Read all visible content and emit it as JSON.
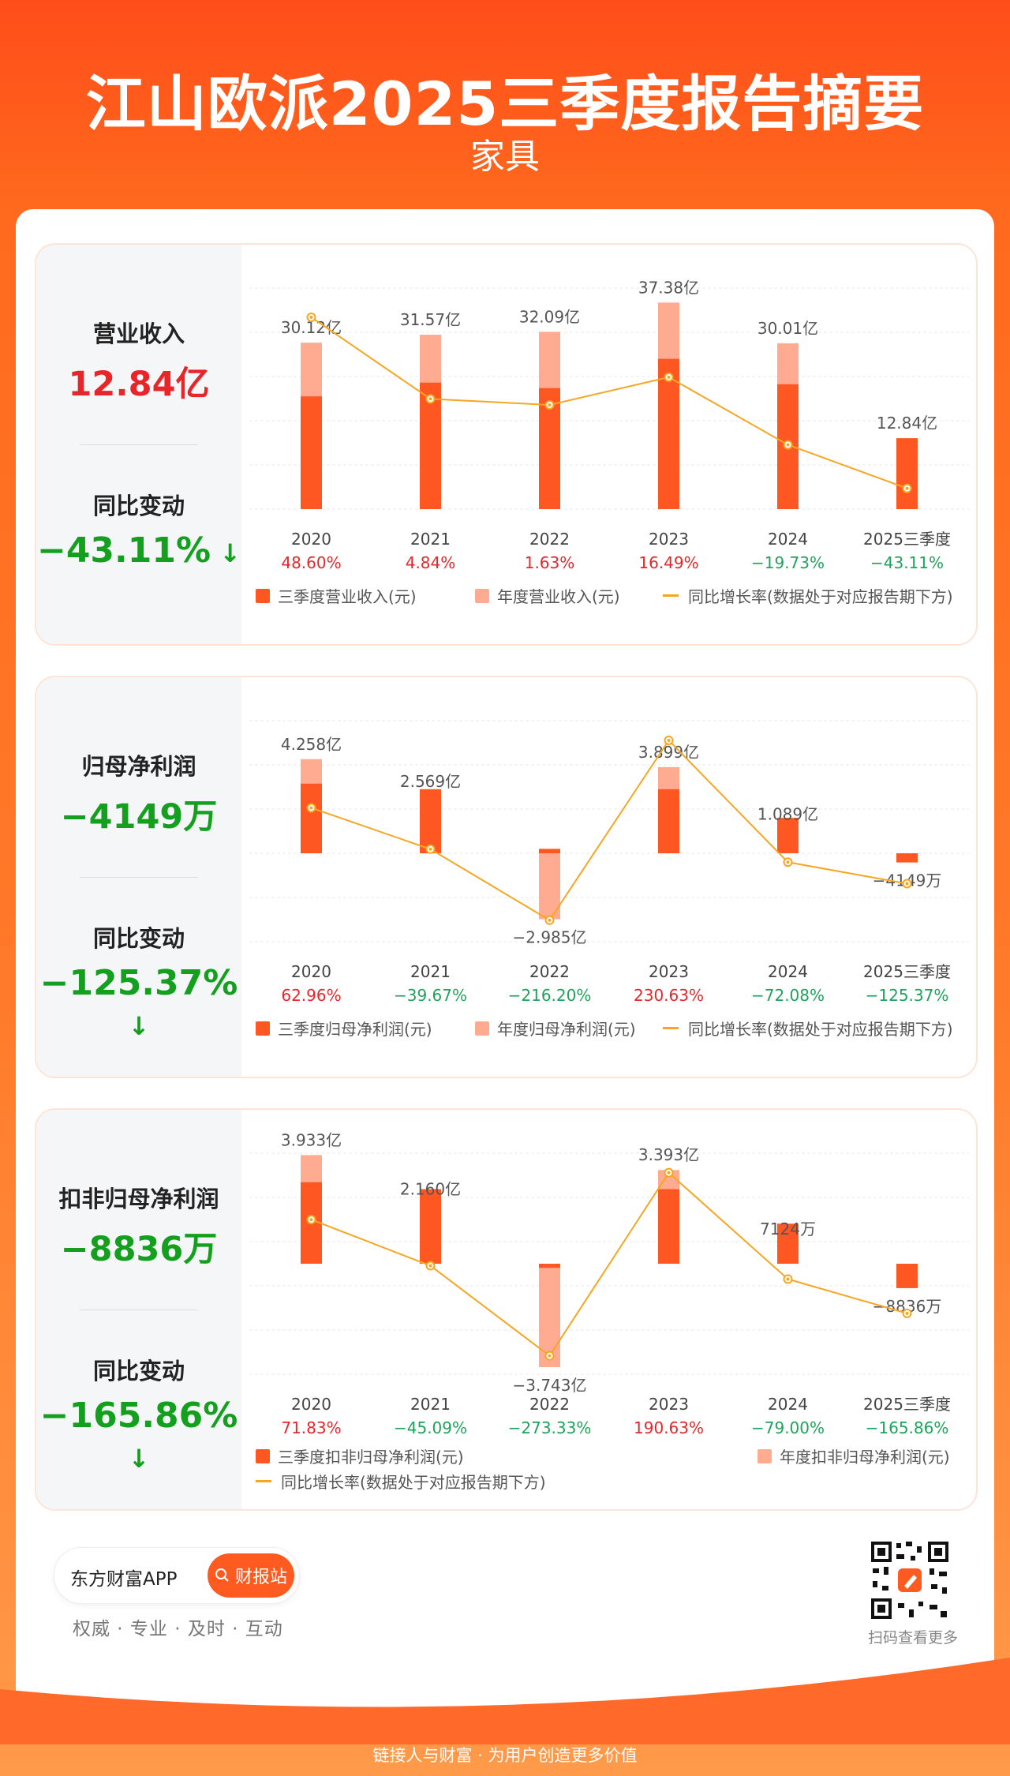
{
  "header": {
    "title": "江山欧派2025三季度报告摘要",
    "subtitle": "家具"
  },
  "categories": [
    "2020",
    "2021",
    "2022",
    "2023",
    "2024",
    "2025三季度"
  ],
  "sections": [
    {
      "metric_label": "营业收入",
      "metric_value": "12.84亿",
      "change_label": "同比变动",
      "change_value": "−43.11%",
      "legend": [
        "三季度营业收入(元)",
        "年度营业收入(元)",
        "同比增长率(数据处于对应报告期下方)"
      ],
      "chart_data": {
        "type": "bar",
        "title": "营业收入",
        "categories": [
          "2020",
          "2021",
          "2022",
          "2023",
          "2024",
          "2025三季度"
        ],
        "unit": "亿元",
        "series": [
          {
            "name": "三季度营业收入(元)",
            "values": [
              20.4,
              22.9,
              21.9,
              27.2,
              22.6,
              12.84
            ]
          },
          {
            "name": "年度营业收入(元)",
            "values": [
              30.12,
              31.57,
              32.09,
              37.38,
              30.01,
              null
            ]
          }
        ],
        "growth_rate": {
          "name": "同比增长率(数据处于对应报告期下方)",
          "values": [
            48.6,
            4.84,
            1.63,
            16.49,
            -19.73,
            -43.11
          ]
        },
        "value_labels": [
          "30.12亿",
          "31.57亿",
          "32.09亿",
          "37.38亿",
          "30.01亿",
          "12.84亿"
        ],
        "rate_labels": [
          "48.60%",
          "4.84%",
          "1.63%",
          "16.49%",
          "−19.73%",
          "−43.11%"
        ],
        "ylim": [
          0,
          40
        ]
      }
    },
    {
      "metric_label": "归母净利润",
      "metric_value": "−4149万",
      "change_label": "同比变动",
      "change_value": "−125.37%",
      "legend": [
        "三季度归母净利润(元)",
        "年度归母净利润(元)",
        "同比增长率(数据处于对应报告期下方)"
      ],
      "chart_data": {
        "type": "bar",
        "title": "归母净利润",
        "categories": [
          "2020",
          "2021",
          "2022",
          "2023",
          "2024",
          "2025三季度"
        ],
        "unit": "亿元",
        "series": [
          {
            "name": "三季度归母净利润(元)",
            "values": [
              3.15,
              2.9,
              0.2,
              2.9,
              1.6,
              -0.4149
            ]
          },
          {
            "name": "年度归母净利润(元)",
            "values": [
              4.258,
              2.569,
              -2.985,
              3.899,
              1.089,
              null
            ]
          }
        ],
        "growth_rate": {
          "name": "同比增长率(数据处于对应报告期下方)",
          "values": [
            62.96,
            -39.67,
            -216.2,
            230.63,
            -72.08,
            -125.37
          ]
        },
        "value_labels": [
          "4.258亿",
          "2.569亿",
          "−2.985亿",
          "3.899亿",
          "1.089亿",
          "−4149万"
        ],
        "rate_labels": [
          "62.96%",
          "−39.67%",
          "−216.20%",
          "230.63%",
          "−72.08%",
          "−125.37%"
        ],
        "ylim": [
          -4,
          6
        ]
      }
    },
    {
      "metric_label": "扣非归母净利润",
      "metric_value": "−8836万",
      "change_label": "同比变动",
      "change_value": "−165.86%",
      "legend": [
        "三季度扣非归母净利润(元)",
        "年度扣非归母净利润(元)",
        "同比增长率(数据处于对应报告期下方)"
      ],
      "chart_data": {
        "type": "bar",
        "title": "扣非归母净利润",
        "categories": [
          "2020",
          "2021",
          "2022",
          "2023",
          "2024",
          "2025三季度"
        ],
        "unit": "亿元",
        "series": [
          {
            "name": "三季度扣非归母净利润(元)",
            "values": [
              2.95,
              2.7,
              -0.15,
              2.7,
              1.45,
              -0.8836
            ]
          },
          {
            "name": "年度扣非归母净利润(元)",
            "values": [
              3.933,
              2.16,
              -3.743,
              3.393,
              0.7124,
              null
            ]
          }
        ],
        "growth_rate": {
          "name": "同比增长率(数据处于对应报告期下方)",
          "values": [
            71.83,
            -45.09,
            -273.33,
            190.63,
            -79.0,
            -165.86
          ]
        },
        "value_labels": [
          "3.933亿",
          "2.160亿",
          "−3.743亿",
          "3.393亿",
          "7124万",
          "−8836万"
        ],
        "rate_labels": [
          "71.83%",
          "−45.09%",
          "−273.33%",
          "190.63%",
          "−79.00%",
          "−165.86%"
        ],
        "ylim": [
          -4,
          4
        ]
      }
    }
  ],
  "colors": {
    "quarter": "#ff5722",
    "annual": "#ffab91",
    "line": "#f6a623",
    "up": "#e8262a",
    "down": "#1fa35c",
    "grid": "#e8e8e8"
  },
  "footer": {
    "app_name": "东方财富APP",
    "search_button": "财报站",
    "slogan": "权威 · 专业 · 及时 · 互动",
    "qr_label": "扫码查看更多",
    "bottom_text": "链接人与财富 · 为用户创造更多价值"
  }
}
